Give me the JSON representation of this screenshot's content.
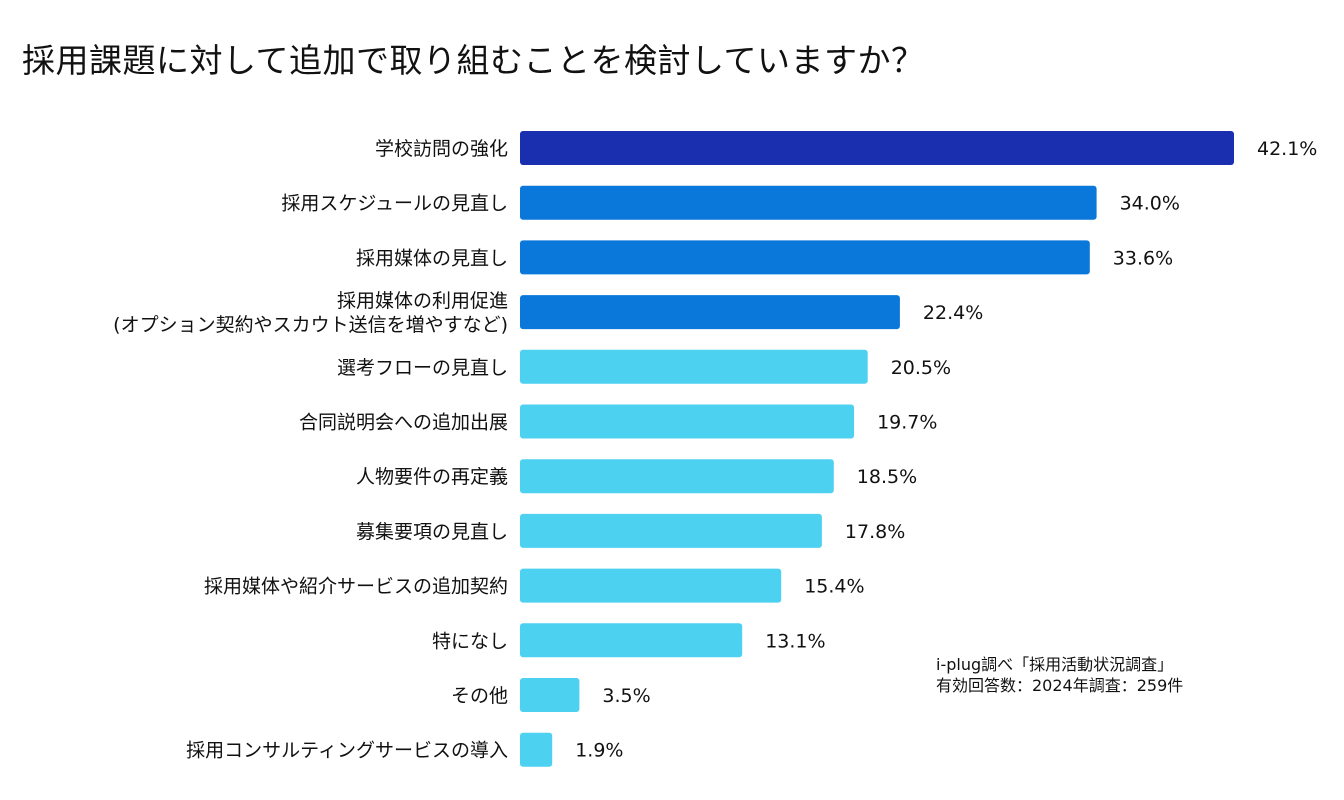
{
  "page": {
    "title": "採用課題に対して追加で取り組むことを検討していますか？"
  },
  "note": {
    "line1": "i-plug調べ「採用活動状況調査」",
    "line2": "有効回答数：2024年調査：259件"
  },
  "colors": {
    "top": "#1a2eb0",
    "high": "#0a77da",
    "low": "#4dd1f0",
    "text": "#111111"
  },
  "chart_data": {
    "type": "bar",
    "orientation": "horizontal",
    "title": "採用課題に対して追加で取り組むことを検討していますか？",
    "xlabel": "",
    "ylabel": "",
    "xlim": [
      0,
      42.1
    ],
    "unit": "%",
    "categories": [
      [
        "学校訪問の強化"
      ],
      [
        "採用スケジュールの見直し"
      ],
      [
        "採用媒体の見直し"
      ],
      [
        "採用媒体の利用促進",
        "(オプション契約やスカウト送信を増やすなど)"
      ],
      [
        "選考フローの見直し"
      ],
      [
        "合同説明会への追加出展"
      ],
      [
        "人物要件の再定義"
      ],
      [
        "募集要項の見直し"
      ],
      [
        "採用媒体や紹介サービスの追加契約"
      ],
      [
        "特になし"
      ],
      [
        "その他"
      ],
      [
        "採用コンサルティングサービスの導入"
      ]
    ],
    "values": [
      42.1,
      34.0,
      33.6,
      22.4,
      20.5,
      19.7,
      18.5,
      17.8,
      15.4,
      13.1,
      3.5,
      1.9
    ],
    "value_labels": [
      "42.1%",
      "34.0%",
      "33.6%",
      "22.4%",
      "20.5%",
      "19.7%",
      "18.5%",
      "17.8%",
      "15.4%",
      "13.1%",
      "3.5%",
      "1.9%"
    ],
    "color_groups": [
      "top",
      "high",
      "high",
      "high",
      "low",
      "low",
      "low",
      "low",
      "low",
      "low",
      "low",
      "low"
    ]
  }
}
